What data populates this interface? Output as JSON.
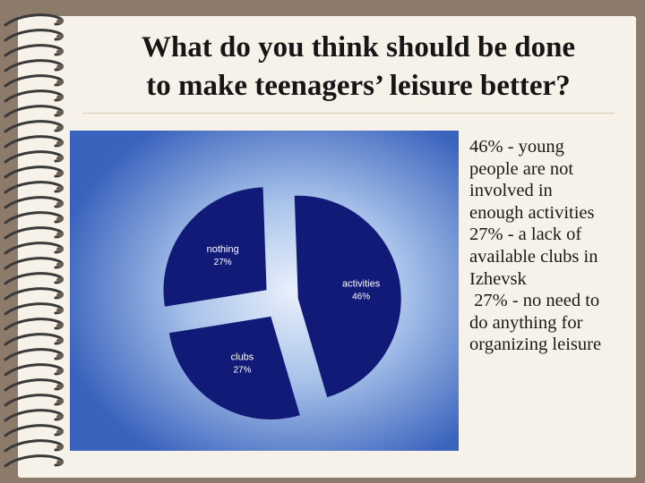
{
  "title": {
    "line1": "What do you think should be done",
    "line2": "to make teenagers’ leisure better?"
  },
  "chart_data": {
    "type": "pie",
    "exploded": true,
    "slices": [
      {
        "label": "activities",
        "value": 46,
        "value_label": "46%",
        "color": "#121a78"
      },
      {
        "label": "clubs",
        "value": 27,
        "value_label": "27%",
        "color": "#121a78"
      },
      {
        "label": "nothing",
        "value": 27,
        "value_label": "27%",
        "color": "#121a78"
      }
    ],
    "background_color": "#3a63bd",
    "label_color": "#ffffff"
  },
  "notes": [
    "46% - young",
    "people are not",
    "involved in",
    "enough activities",
    "27% - a lack of",
    "available clubs in",
    "Izhevsk",
    " 27% - no need to",
    "do anything for",
    "organizing leisure"
  ],
  "colors": {
    "page_background": "#8c7a6a",
    "slide_background": "#f6f2e9",
    "binding": "#3a3a3a"
  },
  "decor": {
    "binding": "spiral-binding-icon"
  }
}
